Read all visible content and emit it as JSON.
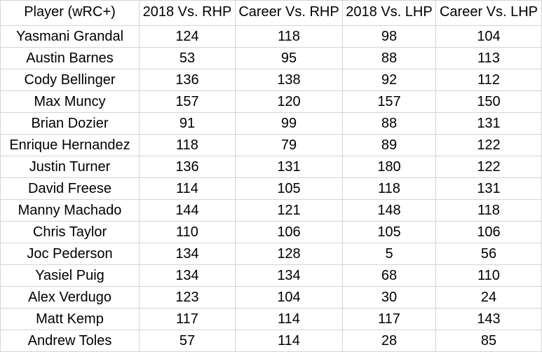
{
  "table": {
    "headers": [
      "Player (wRC+)",
      "2018 Vs. RHP",
      "Career Vs. RHP",
      "2018 Vs. LHP",
      "Career Vs. LHP"
    ],
    "rows": [
      [
        "Yasmani Grandal",
        "124",
        "118",
        "98",
        "104"
      ],
      [
        "Austin Barnes",
        "53",
        "95",
        "88",
        "113"
      ],
      [
        "Cody Bellinger",
        "136",
        "138",
        "92",
        "112"
      ],
      [
        "Max Muncy",
        "157",
        "120",
        "157",
        "150"
      ],
      [
        "Brian Dozier",
        "91",
        "99",
        "88",
        "131"
      ],
      [
        "Enrique Hernandez",
        "118",
        "79",
        "89",
        "122"
      ],
      [
        "Justin Turner",
        "136",
        "131",
        "180",
        "122"
      ],
      [
        "David Freese",
        "114",
        "105",
        "118",
        "131"
      ],
      [
        "Manny Machado",
        "144",
        "121",
        "148",
        "118"
      ],
      [
        "Chris Taylor",
        "110",
        "106",
        "105",
        "106"
      ],
      [
        "Joc Pederson",
        "134",
        "128",
        "5",
        "56"
      ],
      [
        "Yasiel Puig",
        "134",
        "134",
        "68",
        "110"
      ],
      [
        "Alex Verdugo",
        "123",
        "104",
        "30",
        "24"
      ],
      [
        "Matt Kemp",
        "117",
        "114",
        "117",
        "143"
      ],
      [
        "Andrew Toles",
        "57",
        "114",
        "28",
        "85"
      ]
    ]
  }
}
